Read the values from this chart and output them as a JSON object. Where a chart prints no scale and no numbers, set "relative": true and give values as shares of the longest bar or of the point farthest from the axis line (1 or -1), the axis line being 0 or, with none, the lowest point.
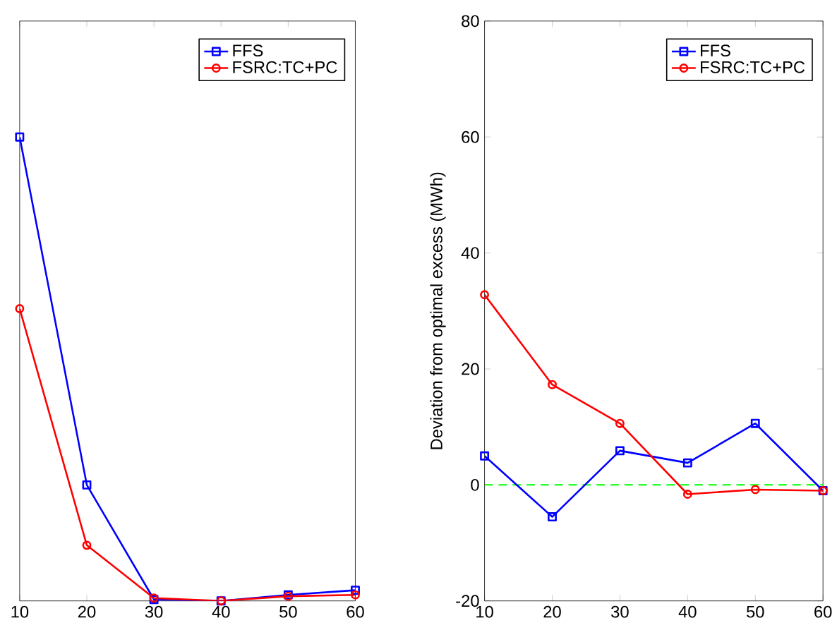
{
  "chart_data": [
    {
      "type": "line",
      "x": [
        10,
        20,
        30,
        40,
        50,
        60
      ],
      "relative": true,
      "xlim": [
        10,
        60
      ],
      "xticks": [
        10,
        20,
        30,
        40,
        50,
        60
      ],
      "tick_labels": "x",
      "legend": "top right",
      "line_style": "solid",
      "series": [
        {
          "name": "FFS",
          "color": "#0000ff",
          "marker": "square",
          "values": [
            1,
            0.25,
            0.003,
            0.0,
            0.013,
            0.023
          ]
        },
        {
          "name": "FSRC:TC+PC",
          "color": "#ff0000",
          "marker": "circle",
          "values": [
            0.63,
            0.12,
            0.006,
            0.0,
            0.01,
            0.013
          ]
        }
      ]
    },
    {
      "type": "line",
      "x": [
        10,
        20,
        30,
        40,
        50,
        60
      ],
      "ylabel": "Deviation from optimal excess (MWh)",
      "xlim": [
        10,
        60
      ],
      "ylim": [
        -20,
        80
      ],
      "xticks": [
        10,
        20,
        30,
        40,
        50,
        60
      ],
      "yticks": [
        -20,
        0,
        20,
        40,
        60,
        80
      ],
      "legend": "top right",
      "line_style": "solid",
      "series": [
        {
          "name": "FFS",
          "color": "#0000ff",
          "marker": "square",
          "values": [
            5.0,
            -5.5,
            5.9,
            3.8,
            10.6,
            -1.0
          ]
        },
        {
          "name": "FSRC:TC+PC",
          "color": "#ff0000",
          "marker": "circle",
          "values": [
            32.8,
            17.3,
            10.6,
            -1.6,
            -0.8,
            -1.0
          ]
        }
      ],
      "ref_lines": [
        {
          "axis": "y",
          "value": 0,
          "color": "#00ff00",
          "line_style": "dashed"
        }
      ]
    }
  ]
}
